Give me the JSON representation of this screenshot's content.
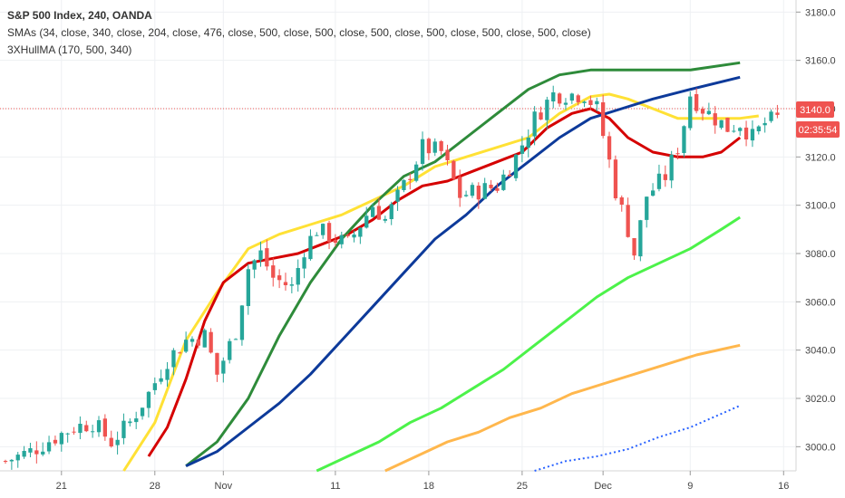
{
  "legend": {
    "title": "S&P 500 Index, 240, OANDA",
    "sma_line": "SMAs (34, close, 340, close, 204, close, 476, close, 500, close, 500, close, 500, close, 500, close, 500, close, 500, close)",
    "hull_line": "3XHullMA (170, 500, 340)"
  },
  "price_tags": {
    "last_price": "3140.0",
    "countdown": "02:35:54"
  },
  "colors": {
    "up": "#26a69a",
    "down": "#ef5350",
    "yellow": "#ffe135",
    "red": "#d50000",
    "darkgreen": "#2e8b3a",
    "blue": "#0d3a9a",
    "lime": "#4cf24a",
    "orange": "#ffb74d",
    "dots": "#2962ff",
    "price_tag": "#ef5350",
    "countdown_tag": "#ef5350"
  },
  "chart_data": {
    "type": "candlestick",
    "symbol": "S&P 500 Index",
    "timeframe": "240",
    "source": "OANDA",
    "ylim": [
      2990,
      3185
    ],
    "yticks": [
      3000.0,
      3020.0,
      3040.0,
      3060.0,
      3080.0,
      3100.0,
      3120.0,
      3140.0,
      3160.0,
      3180.0
    ],
    "ytick_labels": [
      "3000.0",
      "3020.0",
      "3040.0",
      "3060.0",
      "3080.0",
      "3100.0",
      "3120.0",
      "3140.0",
      "3160.0",
      "3180.0"
    ],
    "x_labels": [
      {
        "label": "21",
        "bar": 9
      },
      {
        "label": "28",
        "bar": 24
      },
      {
        "label": "Nov",
        "bar": 35
      },
      {
        "label": "11",
        "bar": 53
      },
      {
        "label": "18",
        "bar": 68
      },
      {
        "label": "25",
        "bar": 83
      },
      {
        "label": "Dec",
        "bar": 96
      },
      {
        "label": "9",
        "bar": 110
      },
      {
        "label": "16",
        "bar": 125
      }
    ],
    "bar_count": 127,
    "last_price": 3140.0,
    "anchors": [
      [
        0,
        2994
      ],
      [
        4,
        2998
      ],
      [
        8,
        3004
      ],
      [
        11,
        3008
      ],
      [
        14,
        3010
      ],
      [
        17,
        3002
      ],
      [
        20,
        3010
      ],
      [
        23,
        3022
      ],
      [
        26,
        3036
      ],
      [
        29,
        3044
      ],
      [
        32,
        3046
      ],
      [
        34,
        3030
      ],
      [
        37,
        3048
      ],
      [
        39,
        3074
      ],
      [
        41,
        3080
      ],
      [
        43,
        3070
      ],
      [
        46,
        3066
      ],
      [
        48,
        3082
      ],
      [
        50,
        3090
      ],
      [
        53,
        3086
      ],
      [
        55,
        3084
      ],
      [
        57,
        3092
      ],
      [
        59,
        3100
      ],
      [
        61,
        3094
      ],
      [
        64,
        3108
      ],
      [
        67,
        3124
      ],
      [
        70,
        3122
      ],
      [
        73,
        3104
      ],
      [
        76,
        3106
      ],
      [
        79,
        3108
      ],
      [
        82,
        3120
      ],
      [
        85,
        3136
      ],
      [
        88,
        3146
      ],
      [
        90,
        3146
      ],
      [
        93,
        3146
      ],
      [
        95,
        3140
      ],
      [
        97,
        3118
      ],
      [
        98,
        3106
      ],
      [
        100,
        3090
      ],
      [
        101,
        3080
      ],
      [
        103,
        3104
      ],
      [
        106,
        3112
      ],
      [
        108,
        3124
      ],
      [
        109,
        3134
      ],
      [
        110,
        3146
      ],
      [
        112,
        3140
      ],
      [
        114,
        3136
      ],
      [
        116,
        3132
      ],
      [
        118,
        3134
      ],
      [
        120,
        3128
      ],
      [
        122,
        3134
      ],
      [
        124,
        3136
      ]
    ],
    "series": [
      {
        "name": "SMA 34",
        "color_key": "yellow",
        "points": [
          [
            19,
            2990
          ],
          [
            24,
            3010
          ],
          [
            29,
            3044
          ],
          [
            34,
            3064
          ],
          [
            39,
            3082
          ],
          [
            44,
            3088
          ],
          [
            49,
            3092
          ],
          [
            54,
            3096
          ],
          [
            59,
            3102
          ],
          [
            64,
            3108
          ],
          [
            69,
            3116
          ],
          [
            74,
            3120
          ],
          [
            79,
            3124
          ],
          [
            84,
            3128
          ],
          [
            89,
            3138
          ],
          [
            94,
            3145
          ],
          [
            97,
            3146
          ],
          [
            100,
            3144
          ],
          [
            104,
            3140
          ],
          [
            108,
            3136
          ],
          [
            112,
            3136
          ],
          [
            116,
            3136
          ],
          [
            118,
            3136
          ],
          [
            121,
            3137
          ]
        ]
      },
      {
        "name": "Hull MA",
        "color_key": "red",
        "points": [
          [
            23,
            2996
          ],
          [
            26,
            3008
          ],
          [
            29,
            3028
          ],
          [
            32,
            3052
          ],
          [
            35,
            3068
          ],
          [
            39,
            3076
          ],
          [
            43,
            3078
          ],
          [
            47,
            3080
          ],
          [
            51,
            3084
          ],
          [
            55,
            3088
          ],
          [
            59,
            3094
          ],
          [
            63,
            3102
          ],
          [
            67,
            3108
          ],
          [
            71,
            3110
          ],
          [
            75,
            3114
          ],
          [
            79,
            3118
          ],
          [
            83,
            3122
          ],
          [
            87,
            3132
          ],
          [
            91,
            3138
          ],
          [
            94,
            3140
          ],
          [
            97,
            3136
          ],
          [
            100,
            3128
          ],
          [
            104,
            3122
          ],
          [
            108,
            3120
          ],
          [
            112,
            3120
          ],
          [
            115,
            3122
          ],
          [
            118,
            3128
          ]
        ]
      },
      {
        "name": "SMA 340",
        "color_key": "darkgreen",
        "points": [
          [
            29,
            2992
          ],
          [
            34,
            3002
          ],
          [
            39,
            3020
          ],
          [
            44,
            3046
          ],
          [
            49,
            3068
          ],
          [
            54,
            3086
          ],
          [
            59,
            3100
          ],
          [
            64,
            3112
          ],
          [
            69,
            3118
          ],
          [
            74,
            3128
          ],
          [
            79,
            3138
          ],
          [
            84,
            3148
          ],
          [
            89,
            3154
          ],
          [
            94,
            3156
          ],
          [
            99,
            3156
          ],
          [
            104,
            3156
          ],
          [
            110,
            3156
          ],
          [
            118,
            3159
          ]
        ]
      },
      {
        "name": "SMA 204",
        "color_key": "blue",
        "points": [
          [
            29,
            2992
          ],
          [
            34,
            2998
          ],
          [
            39,
            3008
          ],
          [
            44,
            3018
          ],
          [
            49,
            3030
          ],
          [
            54,
            3044
          ],
          [
            59,
            3058
          ],
          [
            64,
            3072
          ],
          [
            69,
            3086
          ],
          [
            74,
            3096
          ],
          [
            79,
            3108
          ],
          [
            84,
            3118
          ],
          [
            89,
            3128
          ],
          [
            94,
            3136
          ],
          [
            99,
            3140
          ],
          [
            104,
            3144
          ],
          [
            110,
            3148
          ],
          [
            118,
            3153
          ]
        ]
      },
      {
        "name": "SMA 476",
        "color_key": "lime",
        "points": [
          [
            50,
            2990
          ],
          [
            55,
            2996
          ],
          [
            60,
            3002
          ],
          [
            65,
            3010
          ],
          [
            70,
            3016
          ],
          [
            75,
            3024
          ],
          [
            80,
            3032
          ],
          [
            85,
            3042
          ],
          [
            90,
            3052
          ],
          [
            95,
            3062
          ],
          [
            100,
            3070
          ],
          [
            105,
            3076
          ],
          [
            110,
            3082
          ],
          [
            115,
            3090
          ],
          [
            118,
            3095
          ]
        ]
      },
      {
        "name": "SMA 500",
        "color_key": "orange",
        "points": [
          [
            61,
            2990
          ],
          [
            66,
            2996
          ],
          [
            71,
            3002
          ],
          [
            76,
            3006
          ],
          [
            81,
            3012
          ],
          [
            86,
            3016
          ],
          [
            91,
            3022
          ],
          [
            96,
            3026
          ],
          [
            101,
            3030
          ],
          [
            106,
            3034
          ],
          [
            111,
            3038
          ],
          [
            118,
            3042
          ]
        ]
      },
      {
        "name": "dotted",
        "color_key": "dots",
        "points": [
          [
            85,
            2990
          ],
          [
            90,
            2994
          ],
          [
            95,
            2996
          ],
          [
            100,
            2999
          ],
          [
            105,
            3004
          ],
          [
            110,
            3008
          ],
          [
            118,
            3017
          ]
        ]
      }
    ]
  }
}
